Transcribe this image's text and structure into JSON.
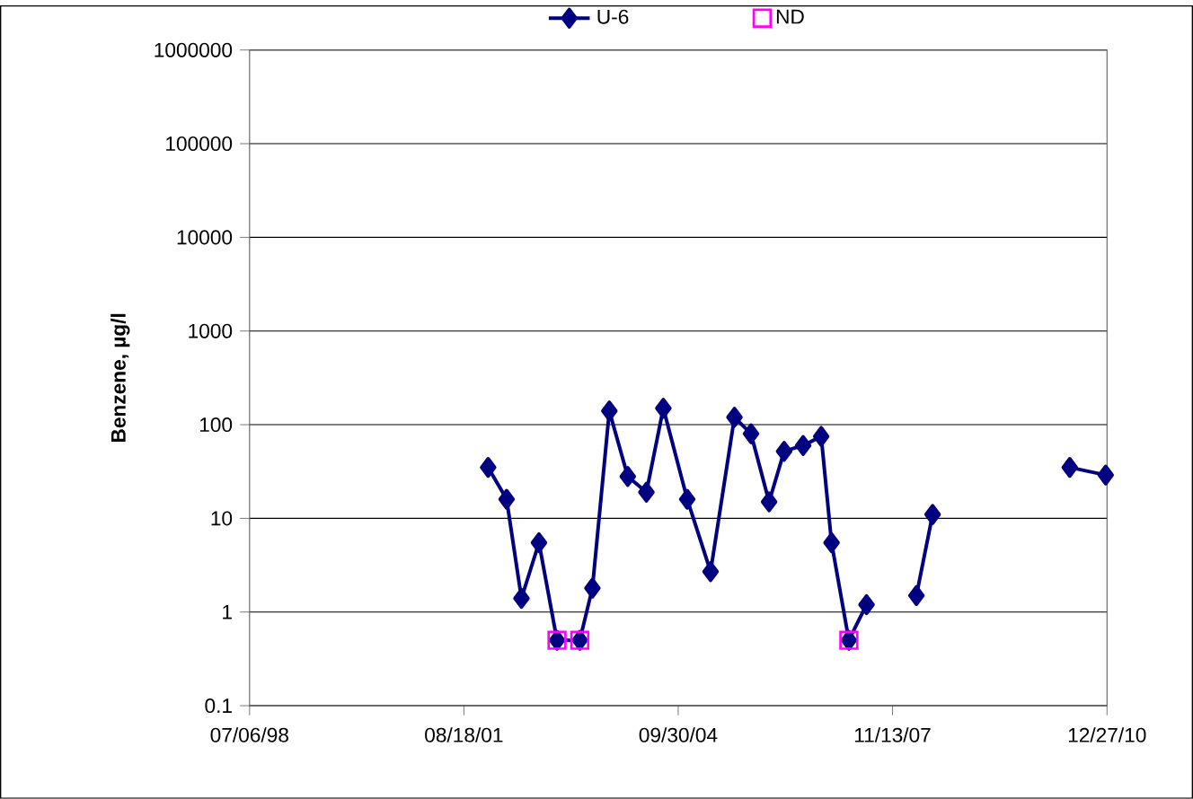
{
  "chart_data": {
    "type": "line",
    "ylabel": "Benzene, µg/l",
    "log": "y",
    "grid": "y",
    "legend": "top",
    "xlim": [
      "1998-07-06",
      "2010-12-27"
    ],
    "xticks": [
      {
        "value": "1998-07-06",
        "label": "07/06/98"
      },
      {
        "value": "2001-08-18",
        "label": "08/18/01"
      },
      {
        "value": "2004-09-30",
        "label": "09/30/04"
      },
      {
        "value": "2007-11-13",
        "label": "11/13/07"
      },
      {
        "value": "2010-12-27",
        "label": "12/27/10"
      }
    ],
    "ylim": [
      0.1,
      1000000
    ],
    "yticks": [
      0.1,
      1,
      10,
      100,
      1000,
      10000,
      100000,
      1000000
    ],
    "series": [
      {
        "name": "U-6",
        "color": "#000080",
        "marker": "diamond",
        "line_style": "solid",
        "x": [
          "2001-12-25",
          "2002-04-02",
          "2002-06-20",
          "2002-09-21",
          "2002-12-26",
          "2003-04-26",
          "2003-07-02",
          "2003-09-30",
          "2004-01-06",
          "2004-04-14",
          "2004-07-13",
          "2004-11-17",
          "2005-03-21",
          "2005-07-26",
          "2005-10-22",
          "2006-01-26",
          "2006-04-16",
          "2006-07-26",
          "2006-10-30",
          "2006-12-24",
          "2007-03-26",
          "2007-06-28",
          "2007-11-01",
          "2008-03-19",
          "2008-06-13",
          "2009-09-01",
          "2010-06-12",
          "2010-12-20"
        ],
        "values": [
          35,
          16,
          1.4,
          5.5,
          0.5,
          0.5,
          1.8,
          140,
          28,
          19,
          150,
          16,
          2.7,
          120,
          80,
          15,
          52,
          60,
          75,
          5.5,
          0.5,
          1.2,
          null,
          1.5,
          11,
          null,
          35,
          29
        ]
      },
      {
        "name": "ND",
        "type": "scatter",
        "color": "#ff00ff",
        "marker": "square",
        "x": [
          "2002-12-26",
          "2003-04-26",
          "2007-03-26"
        ],
        "values": [
          0.5,
          0.5,
          0.5
        ]
      }
    ]
  }
}
